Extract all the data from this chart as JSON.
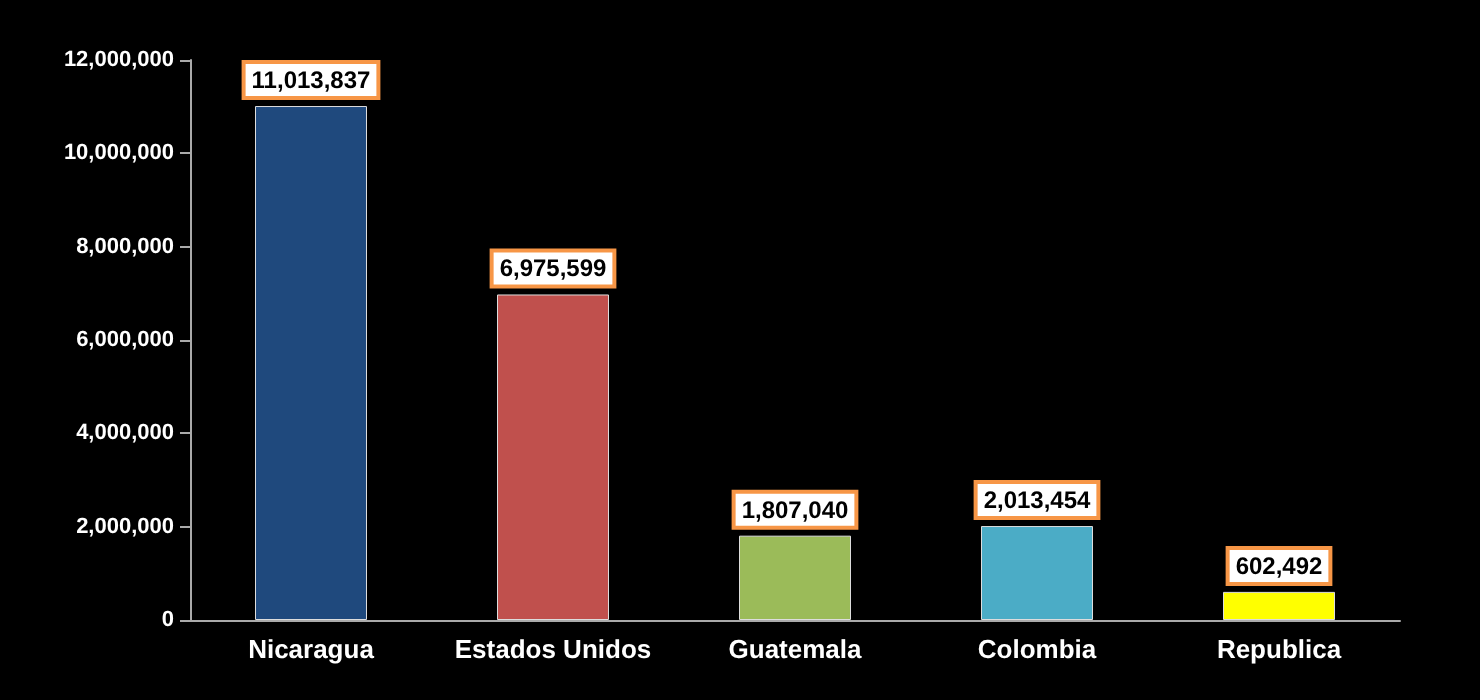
{
  "chart_data": {
    "type": "bar",
    "categories": [
      "Nicaragua",
      "Estados Unidos",
      "Guatemala",
      "Colombia",
      "Republica"
    ],
    "values": [
      11013837,
      6975599,
      1807040,
      2013454,
      602492
    ],
    "value_labels": [
      "11,013,837",
      "6,975,599",
      "1,807,040",
      "2,013,454",
      "602,492"
    ],
    "colors": [
      "#1f497d",
      "#c0504d",
      "#9bbb59",
      "#4bacc6",
      "#ffff00"
    ],
    "ylim": [
      0,
      12000000
    ],
    "yticks": [
      0,
      {
        "value": 2000000,
        "label": "2,000,000"
      },
      {
        "value": 4000000,
        "label": "4,000,000"
      },
      {
        "value": 6000000,
        "label": "6,000,000"
      },
      {
        "value": 8000000,
        "label": "8,000,000"
      },
      {
        "value": 10000000,
        "label": "10,000,000"
      },
      {
        "value": 12000000,
        "label": "12,000,000"
      }
    ],
    "grid": false
  }
}
